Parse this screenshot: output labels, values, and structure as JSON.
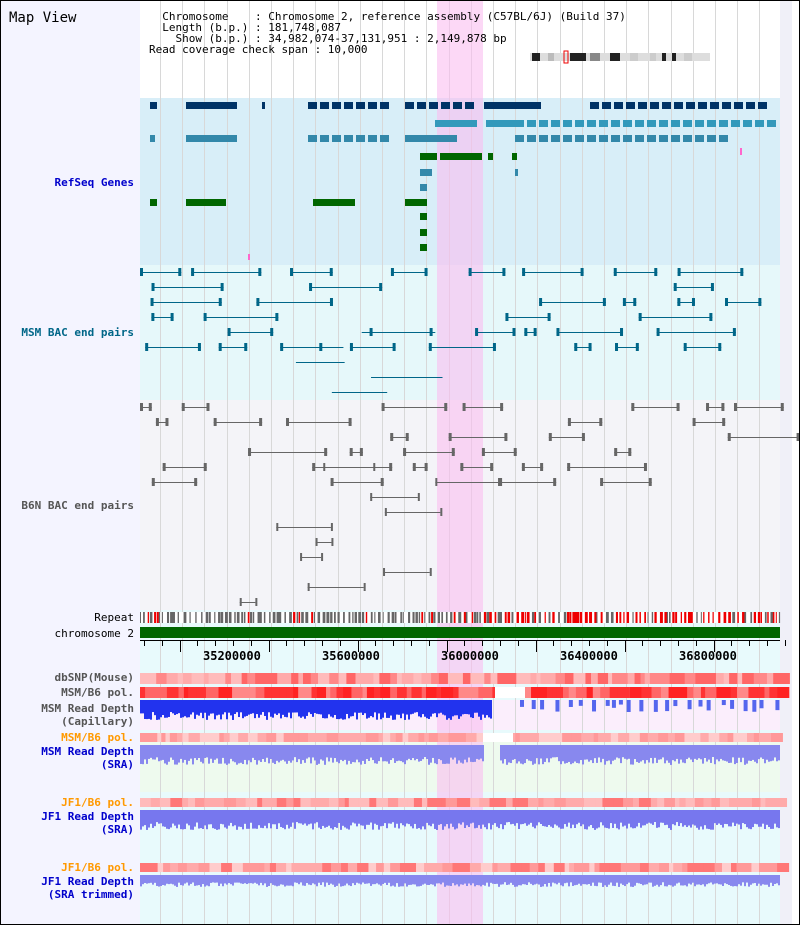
{
  "title": "Map View",
  "header": {
    "line1": "  Chromosome    : Chromosome 2, reference assembly (C57BL/6J) (Build 37)",
    "line2": "  Length (b.p.) : 181,748,087",
    "line3": "    Show (b.p.) : 34,982,074-37,131,951 : 2,149,878 bp",
    "line4": "Read coverage check span : 10,000"
  },
  "tracks": {
    "refseq": "RefSeq Genes",
    "msm_bac": "MSM BAC end pairs",
    "b6n_bac": "B6N BAC end pairs",
    "repeat": "Repeat",
    "chromosome": "chromosome 2",
    "dbsnp": "dbSNP(Mouse)",
    "msm_pol": "MSM/B6 pol.",
    "msm_depth_cap": "MSM Read Depth",
    "msm_depth_cap2": "(Capillary)",
    "msm_pol2": "MSM/B6 pol.",
    "msm_depth_sra": "MSM Read Depth",
    "msm_depth_sra2": "(SRA)",
    "jf1_pol": "JF1/B6 pol.",
    "jf1_depth": "JF1 Read Depth",
    "jf1_depth2": "(SRA)",
    "jf1_pol2": "JF1/B6 pol.",
    "jf1_depth_trim": "JF1 Read Depth",
    "jf1_depth_trim2": "(SRA trimmed)"
  },
  "axis": {
    "ticks": [
      "35200000",
      "35600000",
      "36000000",
      "36400000",
      "36800000"
    ]
  },
  "colors": {
    "refseq_label": "#0000cc",
    "msm_label": "#006688",
    "b6n_label": "#555555",
    "orange": "#ff9900",
    "blue": "#0000cc"
  }
}
